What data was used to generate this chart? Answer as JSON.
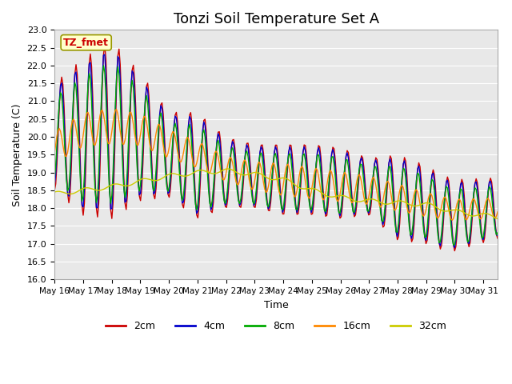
{
  "title": "Tonzi Soil Temperature Set A",
  "xlabel": "Time",
  "ylabel": "Soil Temperature (C)",
  "ylim": [
    16.0,
    23.0
  ],
  "yticks": [
    16.0,
    16.5,
    17.0,
    17.5,
    18.0,
    18.5,
    19.0,
    19.5,
    20.0,
    20.5,
    21.0,
    21.5,
    22.0,
    22.5,
    23.0
  ],
  "xtick_labels": [
    "May 16",
    "May 17",
    "May 18",
    "May 19",
    "May 20",
    "May 21",
    "May 22",
    "May 23",
    "May 24",
    "May 25",
    "May 26",
    "May 27",
    "May 28",
    "May 29",
    "May 30",
    "May 31"
  ],
  "legend_label": "TZ_fmet",
  "series_labels": [
    "2cm",
    "4cm",
    "8cm",
    "16cm",
    "32cm"
  ],
  "series_colors": [
    "#cc0000",
    "#0000cc",
    "#00aa00",
    "#ff8800",
    "#cccc00"
  ],
  "background_color": "#e8e8e8",
  "title_fontsize": 13
}
